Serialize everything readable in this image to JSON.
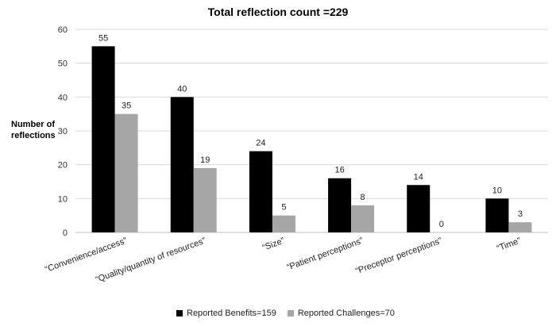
{
  "chart_data": {
    "type": "bar",
    "title": "Total reflection count =229",
    "ylabel": "Number of reflections",
    "ylabel_lines": [
      "Number of",
      "reflections"
    ],
    "xlabel": "",
    "ylim": [
      0,
      60
    ],
    "yticks": [
      0,
      10,
      20,
      30,
      40,
      50,
      60
    ],
    "grid": true,
    "legend_position": "bottom",
    "categories": [
      "“Convenience/access”",
      "“Quality/quantity of resources”",
      "“Size”",
      "“Patient perceptions”",
      "“Preceptor perceptions”",
      "“Time”"
    ],
    "series": [
      {
        "name": "Reported Benefits=159",
        "color": "#000000",
        "values": [
          55,
          40,
          24,
          16,
          14,
          10
        ]
      },
      {
        "name": "Reported Challenges=70",
        "color": "#a6a6a6",
        "values": [
          35,
          19,
          5,
          8,
          0,
          3
        ]
      }
    ]
  }
}
